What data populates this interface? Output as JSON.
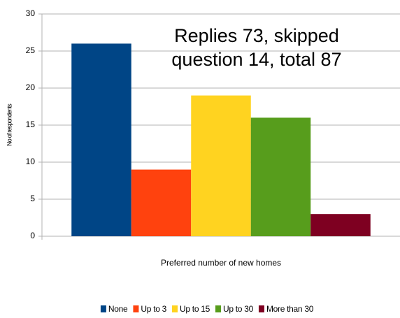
{
  "chart_data": {
    "type": "bar",
    "categories": [
      null
    ],
    "series": [
      {
        "name": "None",
        "color": "#004586",
        "values": [
          26
        ]
      },
      {
        "name": "Up to 3",
        "color": "#ff420e",
        "values": [
          9
        ]
      },
      {
        "name": "Up to 15",
        "color": "#ffd320",
        "values": [
          19
        ]
      },
      {
        "name": "Up to 30",
        "color": "#579d1c",
        "values": [
          16
        ]
      },
      {
        "name": "More than 30",
        "color": "#7e0021",
        "values": [
          3
        ]
      }
    ],
    "annotation": [
      "Replies 73, skipped",
      "question 14, total 87"
    ],
    "xlabel": "Preferred number of new homes",
    "ylabel": "No of respondents",
    "ylim": [
      0,
      30
    ],
    "yticks": [
      0,
      5,
      10,
      15,
      20,
      25,
      30
    ],
    "grid": true,
    "legend": "bottom"
  }
}
